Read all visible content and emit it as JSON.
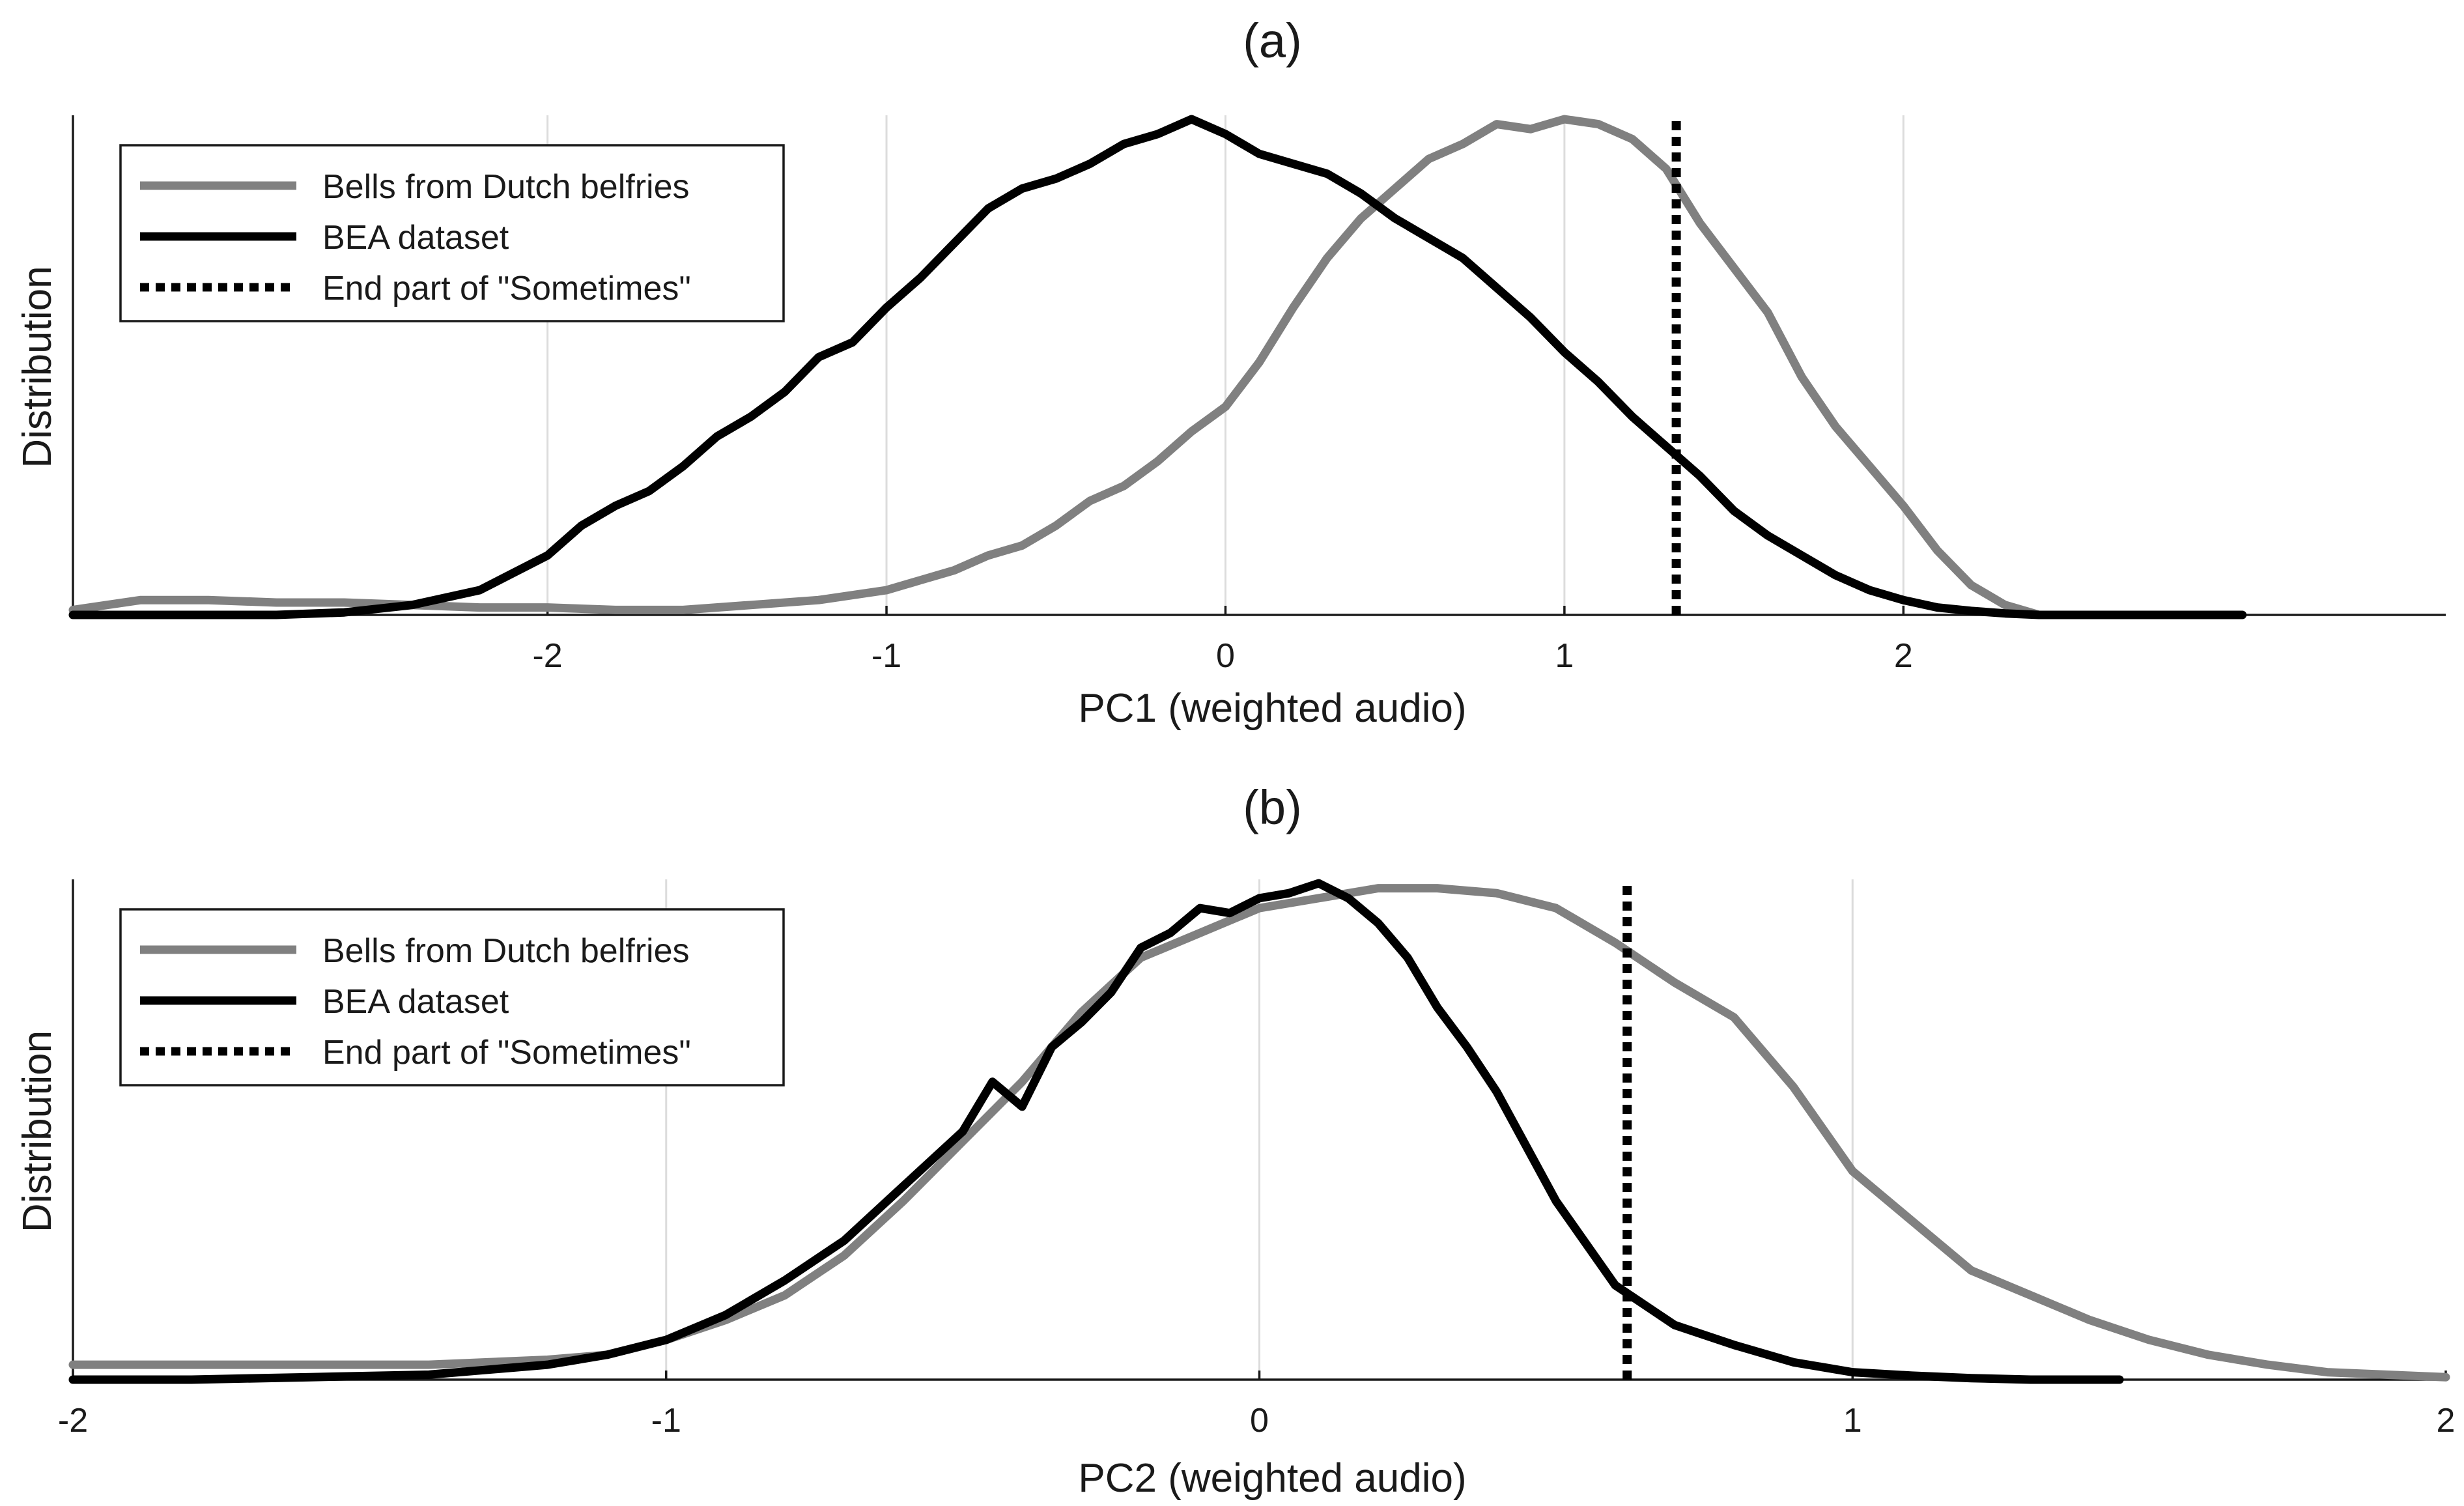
{
  "chart_data": [
    {
      "type": "line",
      "title": "(a)",
      "xlabel": "PC1 (weighted audio)",
      "ylabel": "Distribution",
      "xlim": [
        -3.4,
        3.6
      ],
      "ylim": [
        0,
        1
      ],
      "xticks": [
        -2,
        -1,
        0,
        1,
        2
      ],
      "xtick_labels": [
        "-2",
        "-1",
        "0",
        "1",
        "2"
      ],
      "grid": "vertical",
      "legend_position": "top-left",
      "legend": [
        "Bells from Dutch belfries",
        "BEA dataset",
        "End part of \"Sometimes\""
      ],
      "series": [
        {
          "name": "Bells from Dutch belfries",
          "color": "#808080",
          "style": "solid",
          "x": [
            -3.4,
            -3.2,
            -3.0,
            -2.8,
            -2.6,
            -2.4,
            -2.2,
            -2.0,
            -1.8,
            -1.6,
            -1.4,
            -1.2,
            -1.0,
            -0.9,
            -0.8,
            -0.7,
            -0.6,
            -0.5,
            -0.4,
            -0.3,
            -0.2,
            -0.1,
            0.0,
            0.1,
            0.2,
            0.3,
            0.4,
            0.5,
            0.6,
            0.7,
            0.8,
            0.9,
            1.0,
            1.1,
            1.2,
            1.3,
            1.4,
            1.5,
            1.6,
            1.7,
            1.8,
            1.9,
            2.0,
            2.1,
            2.2,
            2.3,
            2.4
          ],
          "y": [
            0.01,
            0.03,
            0.03,
            0.025,
            0.025,
            0.02,
            0.015,
            0.015,
            0.01,
            0.01,
            0.02,
            0.03,
            0.05,
            0.07,
            0.09,
            0.12,
            0.14,
            0.18,
            0.23,
            0.26,
            0.31,
            0.37,
            0.42,
            0.51,
            0.62,
            0.72,
            0.8,
            0.86,
            0.92,
            0.95,
            0.99,
            0.98,
            1.0,
            0.99,
            0.96,
            0.9,
            0.79,
            0.7,
            0.61,
            0.48,
            0.38,
            0.3,
            0.22,
            0.13,
            0.06,
            0.02,
            0.0
          ]
        },
        {
          "name": "BEA dataset",
          "color": "#000000",
          "style": "solid",
          "x": [
            -3.4,
            -3.2,
            -3.0,
            -2.8,
            -2.6,
            -2.4,
            -2.2,
            -2.0,
            -1.9,
            -1.8,
            -1.7,
            -1.6,
            -1.5,
            -1.4,
            -1.3,
            -1.2,
            -1.1,
            -1.0,
            -0.9,
            -0.8,
            -0.7,
            -0.6,
            -0.5,
            -0.4,
            -0.3,
            -0.2,
            -0.1,
            0.0,
            0.1,
            0.2,
            0.3,
            0.4,
            0.5,
            0.6,
            0.7,
            0.8,
            0.9,
            1.0,
            1.1,
            1.2,
            1.3,
            1.4,
            1.5,
            1.6,
            1.7,
            1.8,
            1.9,
            2.0,
            2.1,
            2.2,
            2.3,
            2.4,
            2.6,
            2.8,
            3.0
          ],
          "y": [
            0.0,
            0.0,
            0.0,
            0.0,
            0.005,
            0.02,
            0.05,
            0.12,
            0.18,
            0.22,
            0.25,
            0.3,
            0.36,
            0.4,
            0.45,
            0.52,
            0.55,
            0.62,
            0.68,
            0.75,
            0.82,
            0.86,
            0.88,
            0.91,
            0.95,
            0.97,
            1.0,
            0.97,
            0.93,
            0.91,
            0.89,
            0.85,
            0.8,
            0.76,
            0.72,
            0.66,
            0.6,
            0.53,
            0.47,
            0.4,
            0.34,
            0.28,
            0.21,
            0.16,
            0.12,
            0.08,
            0.05,
            0.03,
            0.015,
            0.008,
            0.003,
            0.0,
            0.0,
            0.0,
            0.0
          ]
        },
        {
          "name": "End part of \"Sometimes\"",
          "color": "#000000",
          "style": "dotted",
          "x": [
            1.33,
            1.33
          ],
          "y": [
            0,
            1
          ]
        }
      ]
    },
    {
      "type": "line",
      "title": "(b)",
      "xlabel": "PC2 (weighted audio)",
      "ylabel": "Distribution",
      "xlim": [
        -2,
        2
      ],
      "ylim": [
        0,
        1
      ],
      "xticks": [
        -2,
        -1,
        0,
        1,
        2
      ],
      "xtick_labels": [
        "-2",
        "-1",
        "0",
        "1",
        "2"
      ],
      "grid": "vertical",
      "legend_position": "top-left",
      "legend": [
        "Bells from Dutch belfries",
        "BEA dataset",
        "End part of \"Sometimes\""
      ],
      "series": [
        {
          "name": "Bells from Dutch belfries",
          "color": "#808080",
          "style": "solid",
          "x": [
            -2.0,
            -1.8,
            -1.6,
            -1.4,
            -1.2,
            -1.1,
            -1.0,
            -0.9,
            -0.8,
            -0.7,
            -0.6,
            -0.5,
            -0.4,
            -0.3,
            -0.2,
            -0.1,
            0.0,
            0.1,
            0.2,
            0.3,
            0.4,
            0.5,
            0.6,
            0.7,
            0.8,
            0.9,
            1.0,
            1.1,
            1.2,
            1.3,
            1.4,
            1.5,
            1.6,
            1.7,
            1.8,
            2.0
          ],
          "y": [
            0.03,
            0.03,
            0.03,
            0.03,
            0.04,
            0.05,
            0.08,
            0.12,
            0.17,
            0.25,
            0.36,
            0.48,
            0.6,
            0.74,
            0.85,
            0.9,
            0.95,
            0.97,
            0.99,
            0.99,
            0.98,
            0.95,
            0.88,
            0.8,
            0.73,
            0.59,
            0.42,
            0.32,
            0.22,
            0.17,
            0.12,
            0.08,
            0.05,
            0.03,
            0.015,
            0.005
          ]
        },
        {
          "name": "BEA dataset",
          "color": "#000000",
          "style": "solid",
          "x": [
            -2.0,
            -1.8,
            -1.6,
            -1.4,
            -1.2,
            -1.1,
            -1.0,
            -0.9,
            -0.8,
            -0.7,
            -0.6,
            -0.5,
            -0.45,
            -0.4,
            -0.35,
            -0.3,
            -0.25,
            -0.2,
            -0.15,
            -0.1,
            -0.05,
            0.0,
            0.05,
            0.1,
            0.15,
            0.2,
            0.25,
            0.3,
            0.35,
            0.4,
            0.5,
            0.6,
            0.7,
            0.8,
            0.9,
            1.0,
            1.1,
            1.2,
            1.3,
            1.45
          ],
          "y": [
            0.0,
            0.0,
            0.005,
            0.01,
            0.03,
            0.05,
            0.08,
            0.13,
            0.2,
            0.28,
            0.39,
            0.5,
            0.6,
            0.55,
            0.67,
            0.72,
            0.78,
            0.87,
            0.9,
            0.95,
            0.94,
            0.97,
            0.98,
            1.0,
            0.97,
            0.92,
            0.85,
            0.75,
            0.67,
            0.58,
            0.36,
            0.19,
            0.11,
            0.07,
            0.035,
            0.015,
            0.008,
            0.003,
            0.0,
            0.0
          ]
        },
        {
          "name": "End part of \"Sometimes\"",
          "color": "#000000",
          "style": "dotted",
          "x": [
            0.62,
            0.62
          ],
          "y": [
            0,
            1
          ]
        }
      ]
    }
  ]
}
